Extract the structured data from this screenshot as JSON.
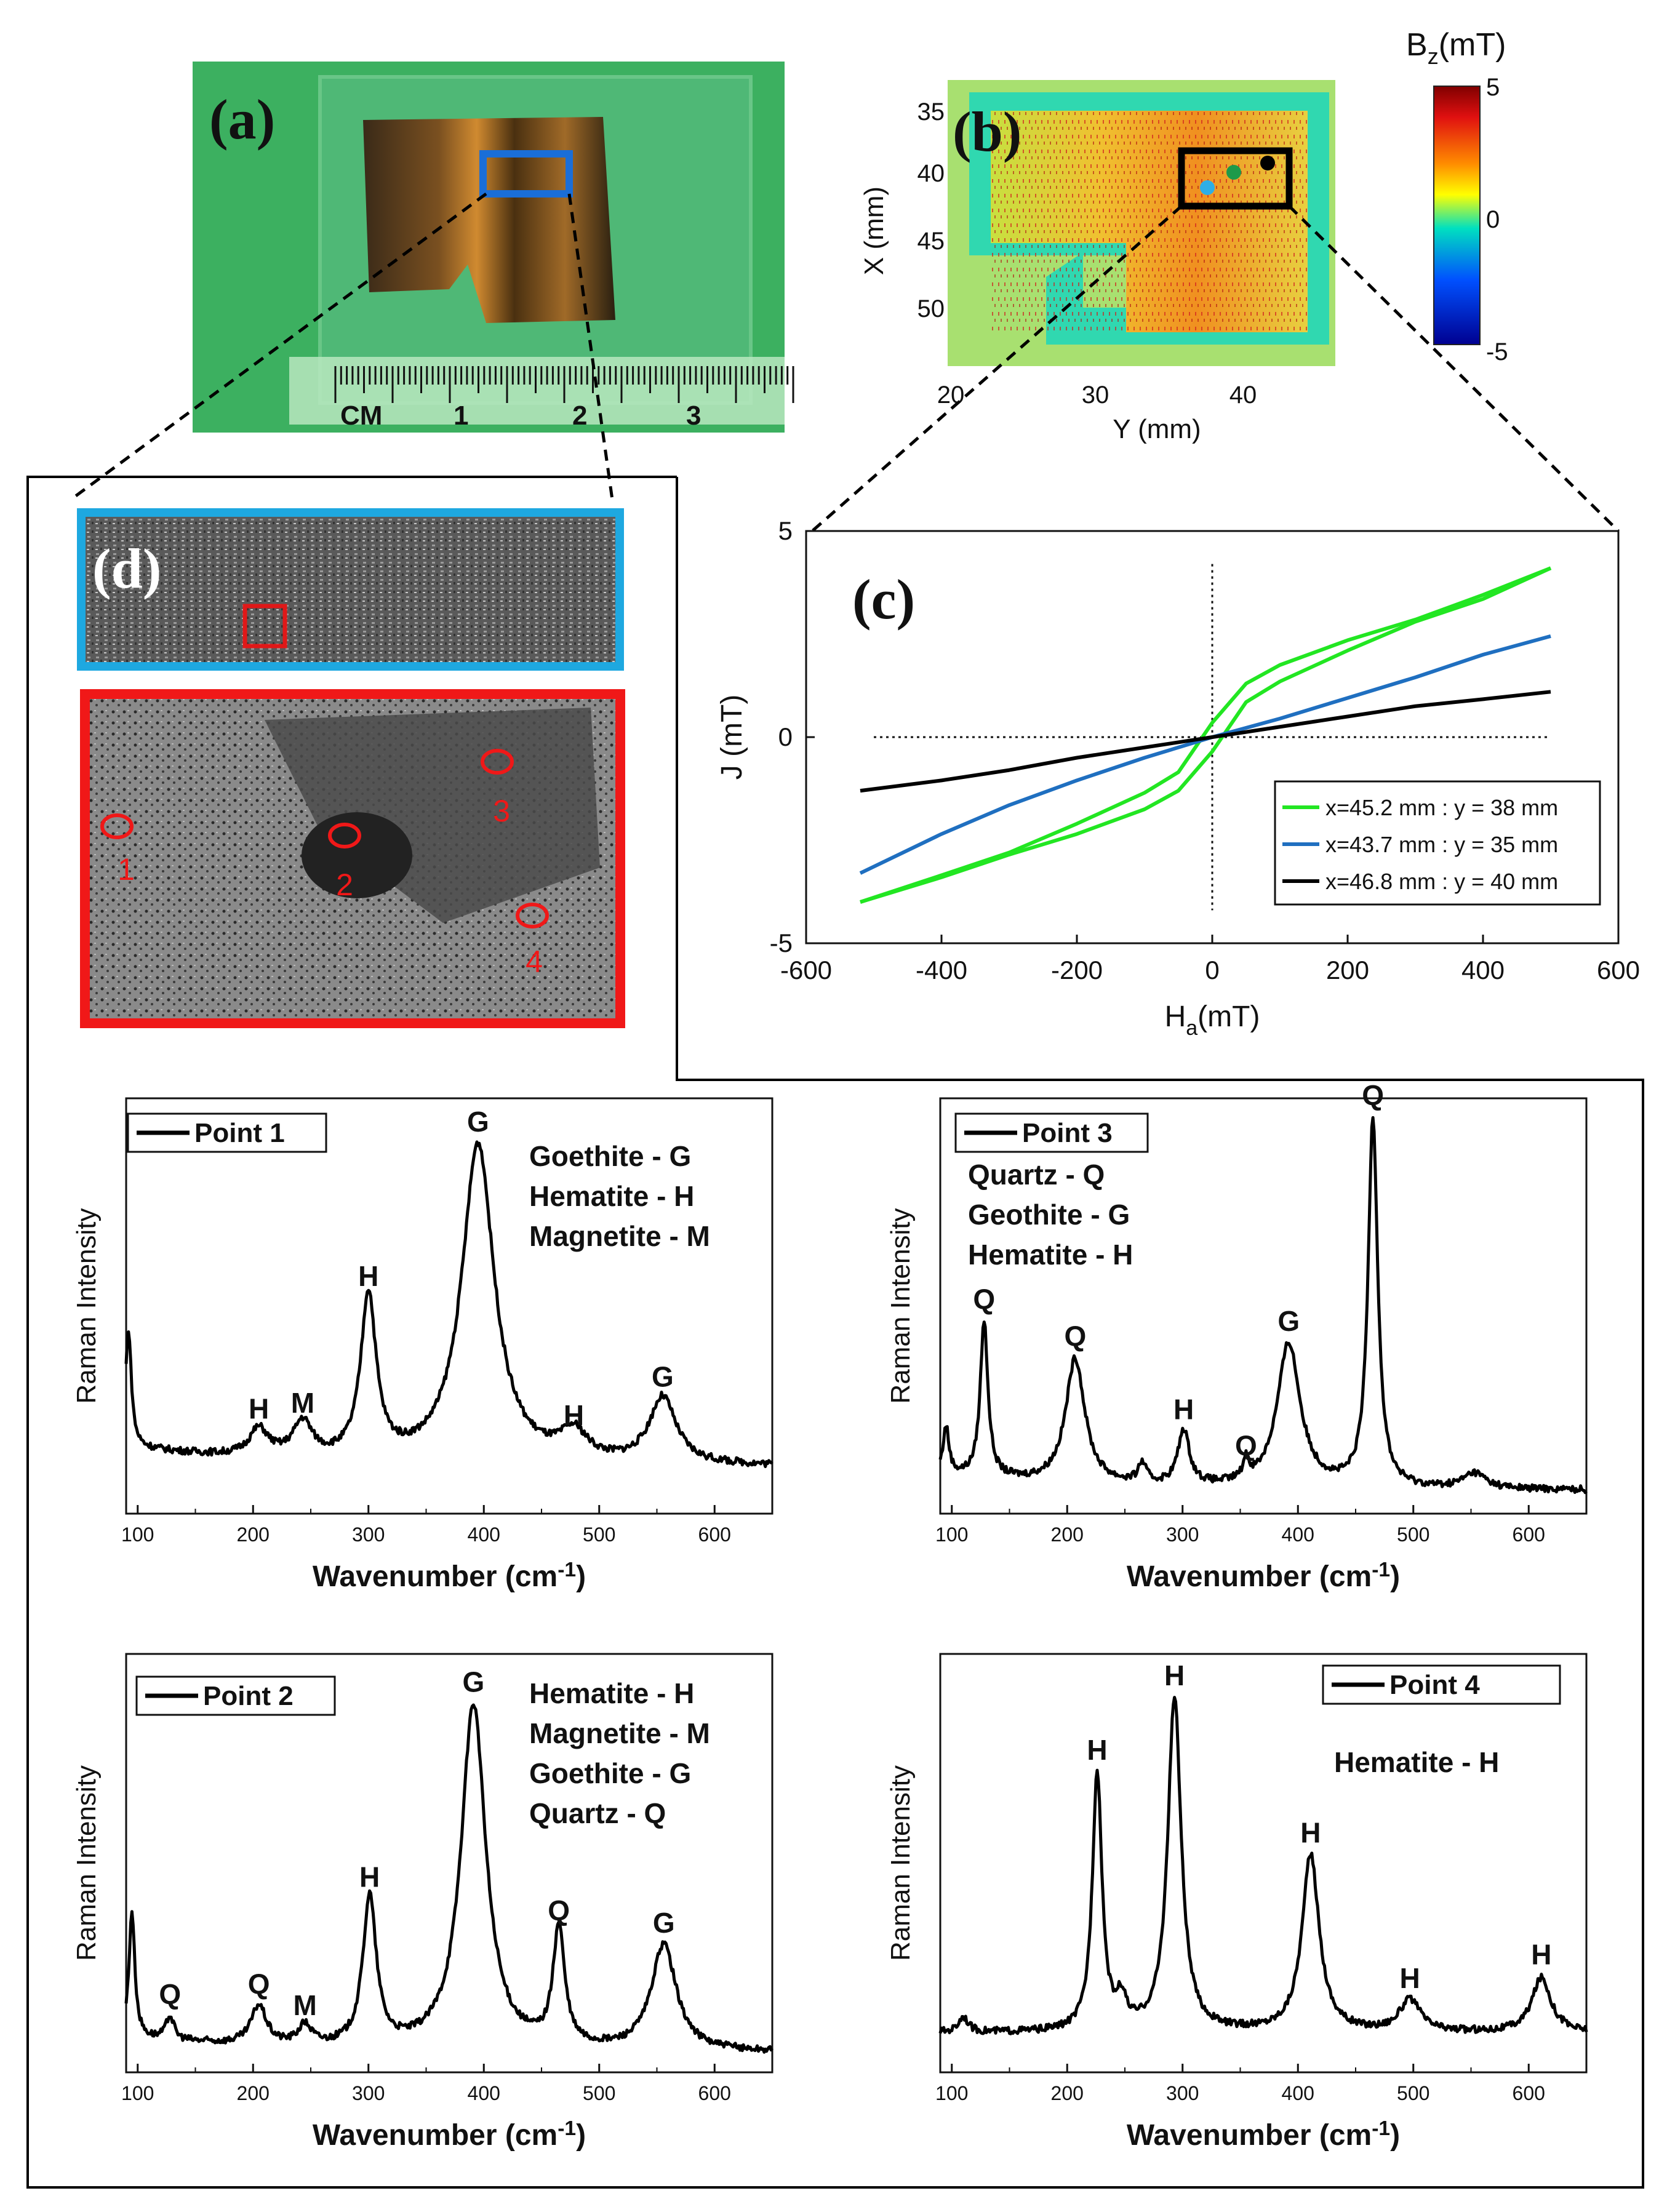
{
  "figure": {
    "panel_a": {
      "letter": "(a)",
      "ruler_unit": "CM",
      "ruler_ticks": [
        "1",
        "2",
        "3"
      ]
    },
    "panel_b": {
      "letter": "(b)",
      "xlabel": "Y (mm)",
      "ylabel": "X (mm)",
      "xticks": [
        "20",
        "30",
        "40"
      ],
      "yticks": [
        "35",
        "40",
        "45",
        "50"
      ],
      "colorbar_label": "B",
      "colorbar_sub": "z",
      "colorbar_unit": "(mT)",
      "colorbar_ticks": [
        "5",
        "0",
        "-5"
      ],
      "colors": {
        "cb_top": "#b00000",
        "cb_mid": "#00e0c0",
        "cb_bot": "#000090"
      }
    },
    "panel_c": {
      "letter": "(c)"
    },
    "panel_d": {
      "letter": "(d)",
      "points": [
        "1",
        "2",
        "3",
        "4"
      ]
    }
  },
  "chart_data": [
    {
      "id": "hysteresis",
      "type": "line",
      "xlabel": "H",
      "xlabel_sub": "a",
      "xlabel_unit": "(mT)",
      "ylabel": "J (mT)",
      "xlim": [
        -600,
        600
      ],
      "ylim": [
        -5,
        5
      ],
      "xticks": [
        "-600",
        "-400",
        "-200",
        "0",
        "200",
        "400",
        "600"
      ],
      "yticks": [
        "5",
        "0",
        "-5"
      ],
      "series": [
        {
          "name": "x=45.2 mm : y = 38 mm",
          "color": "#22e622",
          "x": [
            -520,
            -400,
            -300,
            -200,
            -100,
            -50,
            0,
            50,
            100,
            200,
            300,
            400,
            500
          ],
          "upper": [
            -4.0,
            -3.35,
            -2.8,
            -2.1,
            -1.35,
            -0.85,
            0.35,
            1.3,
            1.75,
            2.35,
            2.85,
            3.45,
            4.1
          ],
          "lower": [
            -4.0,
            -3.4,
            -2.85,
            -2.35,
            -1.75,
            -1.3,
            -0.35,
            0.85,
            1.35,
            2.1,
            2.8,
            3.35,
            4.1
          ]
        },
        {
          "name": "x=43.7 mm : y = 35 mm",
          "color": "#1f6fc0",
          "x": [
            -520,
            -400,
            -300,
            -200,
            -100,
            0,
            100,
            200,
            300,
            400,
            500
          ],
          "values": [
            -3.3,
            -2.35,
            -1.65,
            -1.05,
            -0.5,
            0.0,
            0.45,
            0.95,
            1.45,
            2.0,
            2.45
          ]
        },
        {
          "name": "x=46.8 mm : y = 40 mm",
          "color": "#000000",
          "x": [
            -520,
            -400,
            -300,
            -200,
            -100,
            0,
            100,
            200,
            300,
            400,
            500
          ],
          "values": [
            -1.3,
            -1.05,
            -0.8,
            -0.5,
            -0.25,
            0.0,
            0.25,
            0.5,
            0.75,
            0.92,
            1.1
          ]
        }
      ]
    },
    {
      "id": "raman-point1",
      "type": "line",
      "legend": "Point 1",
      "xlabel": "Wavenumber (cm",
      "xlabel_sup": "-1",
      "xlabel_close": ")",
      "ylabel": "Raman Intensity",
      "xlim": [
        90,
        650
      ],
      "xticks": [
        "100",
        "200",
        "300",
        "400",
        "500",
        "600"
      ],
      "minerals": [
        "Goethite - G",
        "Hematite - H",
        "Magnetite - M"
      ],
      "baseline": 0.12,
      "decay": 0.05,
      "peaks": [
        {
          "x": 92,
          "h": 0.3,
          "w": 3,
          "label": ""
        },
        {
          "x": 205,
          "h": 0.07,
          "w": 10,
          "label": "H"
        },
        {
          "x": 243,
          "h": 0.09,
          "w": 10,
          "label": "M"
        },
        {
          "x": 300,
          "h": 0.42,
          "w": 8,
          "label": "H"
        },
        {
          "x": 395,
          "h": 0.82,
          "w": 17,
          "label": "G"
        },
        {
          "x": 478,
          "h": 0.07,
          "w": 14,
          "label": "H"
        },
        {
          "x": 555,
          "h": 0.17,
          "w": 14,
          "label": "G"
        }
      ]
    },
    {
      "id": "raman-point3",
      "type": "line",
      "legend": "Point 3",
      "xlabel": "Wavenumber (cm",
      "xlabel_sup": "-1",
      "xlabel_close": ")",
      "ylabel": "Raman Intensity",
      "xlim": [
        90,
        650
      ],
      "xticks": [
        "100",
        "200",
        "300",
        "400",
        "500",
        "600"
      ],
      "minerals": [
        "Quartz - Q",
        "Geothite - G",
        "Hematite - H"
      ],
      "baseline": 0.06,
      "decay": 0.04,
      "peaks": [
        {
          "x": 95,
          "h": 0.12,
          "w": 3,
          "label": ""
        },
        {
          "x": 128,
          "h": 0.4,
          "w": 4,
          "label": "Q"
        },
        {
          "x": 207,
          "h": 0.32,
          "w": 10,
          "label": "Q"
        },
        {
          "x": 265,
          "h": 0.05,
          "w": 4,
          "label": ""
        },
        {
          "x": 301,
          "h": 0.14,
          "w": 6,
          "label": "H"
        },
        {
          "x": 355,
          "h": 0.05,
          "w": 3,
          "label": "Q"
        },
        {
          "x": 392,
          "h": 0.37,
          "w": 12,
          "label": "G"
        },
        {
          "x": 465,
          "h": 0.95,
          "w": 5,
          "label": "Q"
        },
        {
          "x": 553,
          "h": 0.04,
          "w": 12,
          "label": ""
        }
      ]
    },
    {
      "id": "raman-point2",
      "type": "line",
      "legend": "Point 2",
      "xlabel": "Wavenumber (cm",
      "xlabel_sup": "-1",
      "xlabel_close": ")",
      "ylabel": "Raman Intensity",
      "xlim": [
        90,
        650
      ],
      "xticks": [
        "100",
        "200",
        "300",
        "400",
        "500",
        "600"
      ],
      "minerals": [
        "Hematite - H",
        "Magnetite - M",
        "Goethite - G",
        "Quartz - Q"
      ],
      "baseline": 0.05,
      "decay": 0.04,
      "peaks": [
        {
          "x": 95,
          "h": 0.32,
          "w": 3,
          "label": ""
        },
        {
          "x": 128,
          "h": 0.06,
          "w": 4,
          "label": "Q"
        },
        {
          "x": 205,
          "h": 0.1,
          "w": 8,
          "label": "Q"
        },
        {
          "x": 245,
          "h": 0.05,
          "w": 7,
          "label": "M"
        },
        {
          "x": 301,
          "h": 0.38,
          "w": 7,
          "label": "H"
        },
        {
          "x": 391,
          "h": 0.88,
          "w": 13,
          "label": "G"
        },
        {
          "x": 465,
          "h": 0.3,
          "w": 6,
          "label": "Q"
        },
        {
          "x": 556,
          "h": 0.27,
          "w": 13,
          "label": "G"
        }
      ]
    },
    {
      "id": "raman-point4",
      "type": "line",
      "legend": "Point 4",
      "xlabel": "Wavenumber (cm",
      "xlabel_sup": "-1",
      "xlabel_close": ")",
      "ylabel": "Raman Intensity",
      "xlim": [
        90,
        650
      ],
      "xticks": [
        "100",
        "200",
        "300",
        "400",
        "500",
        "600"
      ],
      "minerals": [
        "Hematite - H"
      ],
      "baseline": 0.1,
      "decay": 0.0,
      "peaks": [
        {
          "x": 110,
          "h": 0.04,
          "w": 5,
          "label": ""
        },
        {
          "x": 226,
          "h": 0.66,
          "w": 5,
          "label": "H"
        },
        {
          "x": 247,
          "h": 0.07,
          "w": 5,
          "label": ""
        },
        {
          "x": 293,
          "h": 0.85,
          "w": 7,
          "label": "H"
        },
        {
          "x": 411,
          "h": 0.45,
          "w": 9,
          "label": "H"
        },
        {
          "x": 497,
          "h": 0.08,
          "w": 11,
          "label": "H"
        },
        {
          "x": 611,
          "h": 0.14,
          "w": 10,
          "label": "H"
        }
      ]
    }
  ]
}
